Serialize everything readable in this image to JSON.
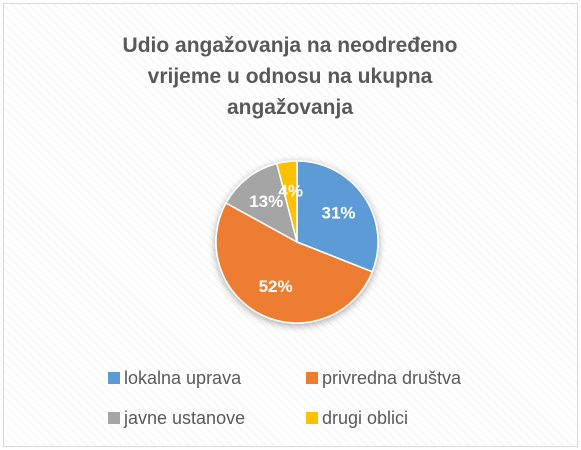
{
  "chart_data": {
    "type": "pie",
    "title": "Udio angažovanja na neodređeno vrijeme u odnosu na ukupna angažovanja",
    "categories": [
      "lokalna uprava",
      "privredna društva",
      "javne ustanove",
      "drugi oblici"
    ],
    "values": [
      31,
      52,
      13,
      4
    ],
    "value_labels": [
      "31%",
      "52%",
      "13%",
      "4%"
    ],
    "colors": [
      "#5b9bd5",
      "#ed7d31",
      "#a5a5a5",
      "#ffc000"
    ],
    "legend": "bottom"
  }
}
